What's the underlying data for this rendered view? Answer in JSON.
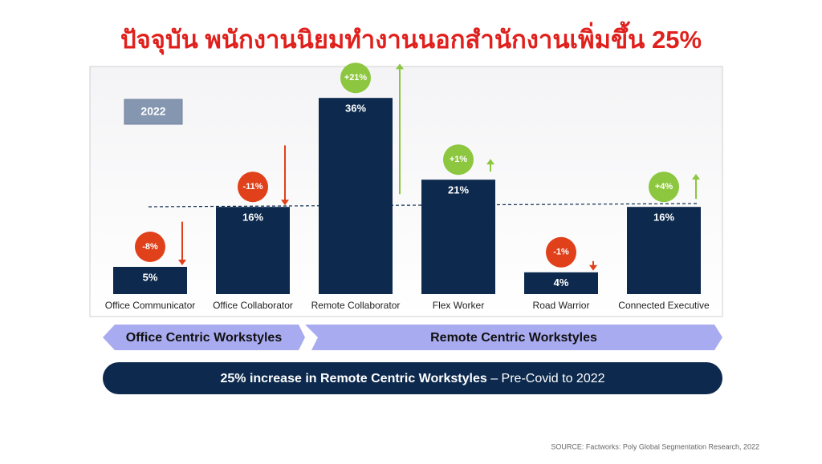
{
  "title": "ปัจจุบัน พนักงานนิยมทำงานนอกสำนักงานเพิ่มขึ้น 25%",
  "chart_data": {
    "type": "bar",
    "year_label": "2022",
    "categories": [
      "Office Communicator",
      "Office Collaborator",
      "Remote Collaborator",
      "Flex Worker",
      "Road Warrior",
      "Connected Executive"
    ],
    "values": [
      5,
      16,
      36,
      21,
      4,
      16
    ],
    "value_labels": [
      "5%",
      "16%",
      "36%",
      "21%",
      "4%",
      "16%"
    ],
    "changes": [
      -8,
      -11,
      21,
      1,
      -1,
      4
    ],
    "change_labels": [
      "-8%",
      "-11%",
      "+21%",
      "+1%",
      "-1%",
      "+4%"
    ],
    "color": "#0d2a4e",
    "up_color": "#8dc63f",
    "down_color": "#e0401a"
  },
  "groups": [
    "Office Centric Workstyles",
    "Remote Centric Workstyles"
  ],
  "banner": {
    "bold": "25% increase in Remote Centric Workstyles",
    "rest": " – Pre-Covid to 2022"
  },
  "source": "SOURCE: Factworks: Poly Global Segmentation Research, 2022"
}
